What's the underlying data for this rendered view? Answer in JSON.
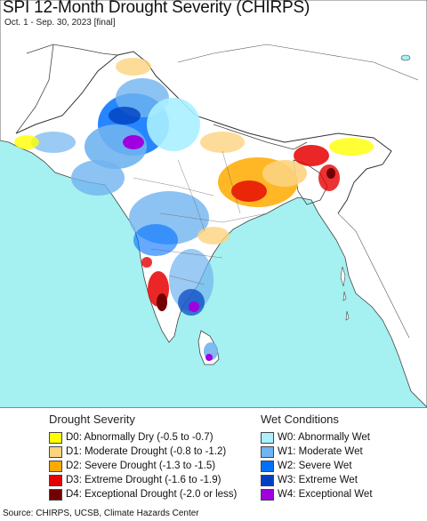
{
  "map": {
    "title": "SPI 12-Month Drought Severity (CHIRPS)",
    "subtitle": "Oct. 1 - Sep. 30, 2023 [final]",
    "ocean_color": "#a5f0f0",
    "land_color": "#ffffff"
  },
  "legend": {
    "drought": {
      "heading": "Drought Severity",
      "items": [
        {
          "label": "D0: Abnormally Dry (-0.5 to -0.7)",
          "color": "#ffff00"
        },
        {
          "label": "D1: Moderate Drought (-0.8 to -1.2)",
          "color": "#fcd37f"
        },
        {
          "label": "D2: Severe Drought (-1.3 to -1.5)",
          "color": "#ffaa00"
        },
        {
          "label": "D3: Extreme Drought (-1.6 to -1.9)",
          "color": "#e60000"
        },
        {
          "label": "D4: Exceptional Drought (-2.0 or less)",
          "color": "#730000"
        }
      ]
    },
    "wet": {
      "heading": "Wet Conditions",
      "items": [
        {
          "label": "W0: Abnormally Wet",
          "color": "#aaf0ff"
        },
        {
          "label": "W1: Moderate Wet",
          "color": "#70b4f0"
        },
        {
          "label": "W2: Severe Wet",
          "color": "#0070ff"
        },
        {
          "label": "W3: Extreme Wet",
          "color": "#0040c0"
        },
        {
          "label": "W4: Exceptional Wet",
          "color": "#a000e0"
        }
      ]
    }
  },
  "source": "Source: CHIRPS, UCSB, Climate Hazards Center"
}
